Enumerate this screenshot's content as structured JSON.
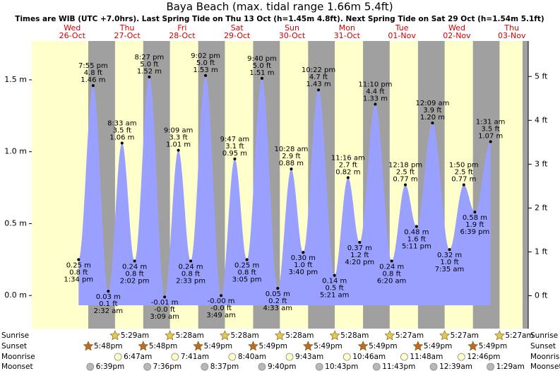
{
  "chart_data": {
    "type": "area",
    "title": "Baya Beach (max. tidal range 1.66m 5.4ft)",
    "subtitle": "Times are WIB (UTC +7.0hrs). Last Spring Tide on Thu 13 Oct (h=1.45m 4.8ft). Next Spring Tide on Sat 29 Oct (h=1.54m 5.1ft)",
    "color": "#9aa0ff",
    "ylim": [
      -0.23,
      1.77
    ],
    "yticks": [
      {
        "value": 0,
        "label": "0.0 m"
      },
      {
        "value": 0.5,
        "label": "0.5 m"
      },
      {
        "value": 1,
        "label": "1.0 m"
      },
      {
        "value": 1.5,
        "label": "1.5 m"
      }
    ],
    "y2lim": [
      -0.75,
      5.81
    ],
    "y2ticks": [
      {
        "value": 0,
        "label": "0 ft"
      },
      {
        "value": 1,
        "label": "1 ft"
      },
      {
        "value": 2,
        "label": "2 ft"
      },
      {
        "value": 3,
        "label": "3 ft"
      },
      {
        "value": 4,
        "label": "4 ft"
      },
      {
        "value": 5,
        "label": "5 ft"
      }
    ],
    "row_labels": {
      "sunrise": "Sunrise",
      "sunset": "Sunset",
      "moonrise": "Moonrise",
      "moonset": "Moonset"
    },
    "days": [
      {
        "day": "Wed",
        "date": "26-Oct",
        "sunset": "5:48pm",
        "moonset": "6:39pm",
        "tides": [
          {
            "time": "1:34 pm",
            "height": 0.25,
            "height_label": "0.25 m",
            "ft_label": "0.8 ft"
          },
          {
            "time": "7:55 pm",
            "height": 1.46,
            "height_label": "1.46 m",
            "ft_label": "4.8 ft"
          }
        ]
      },
      {
        "day": "Thu",
        "date": "27-Oct",
        "sunrise": "5:29am",
        "sunset": "5:48pm",
        "moonrise": "6:47am",
        "moonset": "7:36pm",
        "tides": [
          {
            "time": "2:32 am",
            "height": 0.03,
            "height_label": "0.03 m",
            "ft_label": "0.1 ft"
          },
          {
            "time": "8:33 am",
            "height": 1.06,
            "height_label": "1.06 m",
            "ft_label": "3.5 ft"
          },
          {
            "time": "2:02 pm",
            "height": 0.24,
            "height_label": "0.24 m",
            "ft_label": "0.8 ft"
          },
          {
            "time": "8:27 pm",
            "height": 1.52,
            "height_label": "1.52 m",
            "ft_label": "5.0 ft"
          }
        ]
      },
      {
        "day": "Fri",
        "date": "28-Oct",
        "sunrise": "5:28am",
        "sunset": "5:49pm",
        "moonrise": "7:41am",
        "moonset": "8:37pm",
        "tides": [
          {
            "time": "3:09 am",
            "height": -0.01,
            "height_label": "-0.01 m",
            "ft_label": "-0.0 ft"
          },
          {
            "time": "9:09 am",
            "height": 1.01,
            "height_label": "1.01 m",
            "ft_label": "3.3 ft"
          },
          {
            "time": "2:33 pm",
            "height": 0.24,
            "height_label": "0.24 m",
            "ft_label": "0.8 ft"
          },
          {
            "time": "9:02 pm",
            "height": 1.53,
            "height_label": "1.53 m",
            "ft_label": "5.0 ft"
          }
        ]
      },
      {
        "day": "Sat",
        "date": "29-Oct",
        "sunrise": "5:28am",
        "sunset": "5:49pm",
        "moonrise": "8:40am",
        "moonset": "9:40pm",
        "tides": [
          {
            "time": "3:49 am",
            "height": 0,
            "height_label": "-0.00 m",
            "ft_label": "-0.0 ft"
          },
          {
            "time": "9:47 am",
            "height": 0.95,
            "height_label": "0.95 m",
            "ft_label": "3.1 ft"
          },
          {
            "time": "3:05 pm",
            "height": 0.25,
            "height_label": "0.25 m",
            "ft_label": "0.8 ft"
          },
          {
            "time": "9:40 pm",
            "height": 1.51,
            "height_label": "1.51 m",
            "ft_label": "5.0 ft"
          }
        ]
      },
      {
        "day": "Sun",
        "date": "30-Oct",
        "sunrise": "5:28am",
        "sunset": "5:49pm",
        "moonrise": "9:43am",
        "moonset": "10:43pm",
        "tides": [
          {
            "time": "4:33 am",
            "height": 0.05,
            "height_label": "0.05 m",
            "ft_label": "0.2 ft"
          },
          {
            "time": "10:28 am",
            "height": 0.88,
            "height_label": "0.88 m",
            "ft_label": "2.9 ft"
          },
          {
            "time": "3:40 pm",
            "height": 0.3,
            "height_label": "0.30 m",
            "ft_label": "1.0 ft"
          },
          {
            "time": "10:22 pm",
            "height": 1.43,
            "height_label": "1.43 m",
            "ft_label": "4.7 ft"
          }
        ]
      },
      {
        "day": "Mon",
        "date": "31-Oct",
        "sunrise": "5:28am",
        "sunset": "5:49pm",
        "moonrise": "10:46am",
        "moonset": "11:43pm",
        "tides": [
          {
            "time": "5:21 am",
            "height": 0.14,
            "height_label": "0.14 m",
            "ft_label": "0.5 ft"
          },
          {
            "time": "11:16 am",
            "height": 0.82,
            "height_label": "0.82 m",
            "ft_label": "2.7 ft"
          },
          {
            "time": "4:20 pm",
            "height": 0.37,
            "height_label": "0.37 m",
            "ft_label": "1.2 ft"
          },
          {
            "time": "11:10 pm",
            "height": 1.33,
            "height_label": "1.33 m",
            "ft_label": "4.4 ft"
          }
        ]
      },
      {
        "day": "Tue",
        "date": "01-Nov",
        "sunrise": "5:27am",
        "sunset": "5:49pm",
        "moonrise": "11:48am",
        "tides": [
          {
            "time": "6:20 am",
            "height": 0.24,
            "height_label": "0.24 m",
            "ft_label": "0.8 ft"
          },
          {
            "time": "12:18 pm",
            "height": 0.77,
            "height_label": "0.77 m",
            "ft_label": "2.5 ft"
          },
          {
            "time": "5:11 pm",
            "height": 0.48,
            "height_label": "0.48 m",
            "ft_label": "1.6 ft"
          }
        ]
      },
      {
        "day": "Wed",
        "date": "02-Nov",
        "sunrise": "5:27am",
        "sunset": "5:49pm",
        "moonrise": "12:46pm",
        "moonset": "12:39am",
        "tides": [
          {
            "time": "12:09 am",
            "height": 1.2,
            "height_label": "1.20 m",
            "ft_label": "3.9 ft"
          },
          {
            "time": "7:35 am",
            "height": 0.32,
            "height_label": "0.32 m",
            "ft_label": "1.0 ft"
          },
          {
            "time": "1:50 pm",
            "height": 0.77,
            "height_label": "0.77 m",
            "ft_label": "2.5 ft"
          },
          {
            "time": "6:39 pm",
            "height": 0.58,
            "height_label": "0.58 m",
            "ft_label": "1.9 ft"
          }
        ]
      },
      {
        "day": "Thu",
        "date": "03-Nov",
        "sunrise": "5:27am",
        "moonset": "1:29am",
        "tides": [
          {
            "time": "1:31 am",
            "height": 1.07,
            "height_label": "1.07 m",
            "ft_label": "3.5 ft"
          }
        ]
      }
    ]
  }
}
